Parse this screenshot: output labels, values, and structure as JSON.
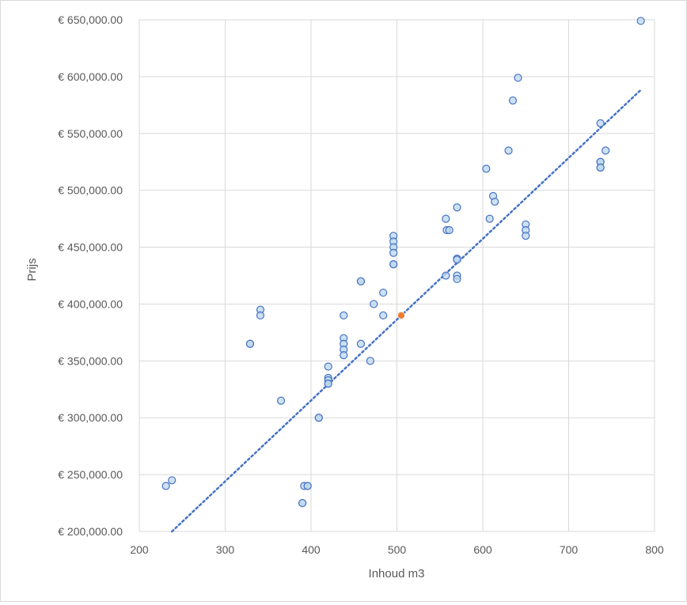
{
  "chart_data": {
    "type": "scatter",
    "title": "",
    "xlabel": "Inhoud m3",
    "ylabel": "Prijs",
    "xlim": [
      200,
      800
    ],
    "ylim": [
      200000,
      650000
    ],
    "x_ticks": [
      {
        "value": 200,
        "label": "200"
      },
      {
        "value": 300,
        "label": "300"
      },
      {
        "value": 400,
        "label": "400"
      },
      {
        "value": 500,
        "label": "500"
      },
      {
        "value": 600,
        "label": "600"
      },
      {
        "value": 700,
        "label": "700"
      },
      {
        "value": 800,
        "label": "800"
      }
    ],
    "y_ticks": [
      {
        "value": 200000,
        "label": "€ 200,000.00"
      },
      {
        "value": 250000,
        "label": "€ 250,000.00"
      },
      {
        "value": 300000,
        "label": "€ 300,000.00"
      },
      {
        "value": 350000,
        "label": "€ 350,000.00"
      },
      {
        "value": 400000,
        "label": "€ 400,000.00"
      },
      {
        "value": 450000,
        "label": "€ 450,000.00"
      },
      {
        "value": 500000,
        "label": "€ 500,000.00"
      },
      {
        "value": 550000,
        "label": "€ 550,000.00"
      },
      {
        "value": 600000,
        "label": "€ 600,000.00"
      },
      {
        "value": 650000,
        "label": "€ 650,000.00"
      }
    ],
    "grid": true,
    "legend": "none",
    "colors": {
      "point_fill": "#bdd7ee",
      "point_stroke": "#4472c4",
      "highlight_fill": "#ed7d31",
      "trendline": "#4472c4",
      "grid": "#d9d9d9"
    },
    "series": [
      {
        "points": [
          [
            231,
            240000
          ],
          [
            238,
            245000
          ],
          [
            329,
            365000
          ],
          [
            329,
            365000
          ],
          [
            341,
            395000
          ],
          [
            341,
            390000
          ],
          [
            365,
            315000
          ],
          [
            390,
            225000
          ],
          [
            390,
            225000
          ],
          [
            392,
            240000
          ],
          [
            396,
            240000
          ],
          [
            396,
            240000
          ],
          [
            409,
            300000
          ],
          [
            409,
            300000
          ],
          [
            420,
            345000
          ],
          [
            420,
            335000
          ],
          [
            420,
            333000
          ],
          [
            420,
            330000
          ],
          [
            420,
            330000
          ],
          [
            438,
            390000
          ],
          [
            438,
            370000
          ],
          [
            438,
            365000
          ],
          [
            438,
            360000
          ],
          [
            438,
            355000
          ],
          [
            458,
            420000
          ],
          [
            458,
            420000
          ],
          [
            458,
            365000
          ],
          [
            469,
            350000
          ],
          [
            473,
            400000
          ],
          [
            484,
            410000
          ],
          [
            484,
            390000
          ],
          [
            496,
            460000
          ],
          [
            496,
            455000
          ],
          [
            496,
            450000
          ],
          [
            496,
            445000
          ],
          [
            496,
            435000
          ],
          [
            496,
            435000
          ],
          [
            557,
            475000
          ],
          [
            557,
            425000
          ],
          [
            558,
            465000
          ],
          [
            561,
            465000
          ],
          [
            570,
            485000
          ],
          [
            570,
            440000
          ],
          [
            570,
            439000
          ],
          [
            570,
            425000
          ],
          [
            570,
            422000
          ],
          [
            604,
            519000
          ],
          [
            608,
            475000
          ],
          [
            612,
            495000
          ],
          [
            614,
            490000
          ],
          [
            630,
            535000
          ],
          [
            635,
            579000
          ],
          [
            641,
            599000
          ],
          [
            650,
            470000
          ],
          [
            650,
            465000
          ],
          [
            650,
            460000
          ],
          [
            737,
            559000
          ],
          [
            737,
            525000
          ],
          [
            737,
            525000
          ],
          [
            737,
            520000
          ],
          [
            737,
            520000
          ],
          [
            743,
            535000
          ],
          [
            784,
            649000
          ]
        ]
      },
      {
        "highlight": true,
        "points": [
          [
            505,
            390000
          ]
        ]
      }
    ],
    "trendline": {
      "type": "linear",
      "style": "dotted",
      "x": [
        238,
        785
      ],
      "y": [
        200000,
        589000
      ]
    }
  }
}
